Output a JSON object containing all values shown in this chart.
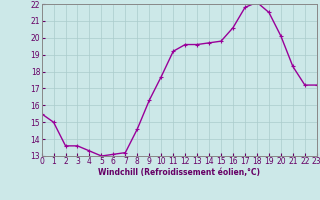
{
  "x": [
    0,
    1,
    2,
    3,
    4,
    5,
    6,
    7,
    8,
    9,
    10,
    11,
    12,
    13,
    14,
    15,
    16,
    17,
    18,
    19,
    20,
    21,
    22,
    23
  ],
  "y": [
    15.5,
    15.0,
    13.6,
    13.6,
    13.3,
    13.0,
    13.1,
    13.2,
    14.6,
    16.3,
    17.7,
    19.2,
    19.6,
    19.6,
    19.7,
    19.8,
    20.6,
    21.8,
    22.1,
    21.5,
    20.1,
    18.3,
    17.2,
    17.2
  ],
  "line_color": "#990099",
  "marker": "+",
  "bg_color": "#cce8e8",
  "grid_color": "#aacccc",
  "xlabel": "Windchill (Refroidissement éolien,°C)",
  "xlabel_color": "#660066",
  "tick_color": "#660066",
  "ylim": [
    13,
    22
  ],
  "xlim": [
    0,
    23
  ],
  "yticks": [
    13,
    14,
    15,
    16,
    17,
    18,
    19,
    20,
    21,
    22
  ],
  "xticks": [
    0,
    1,
    2,
    3,
    4,
    5,
    6,
    7,
    8,
    9,
    10,
    11,
    12,
    13,
    14,
    15,
    16,
    17,
    18,
    19,
    20,
    21,
    22,
    23
  ],
  "tick_fontsize": 5.5,
  "xlabel_fontsize": 5.5
}
